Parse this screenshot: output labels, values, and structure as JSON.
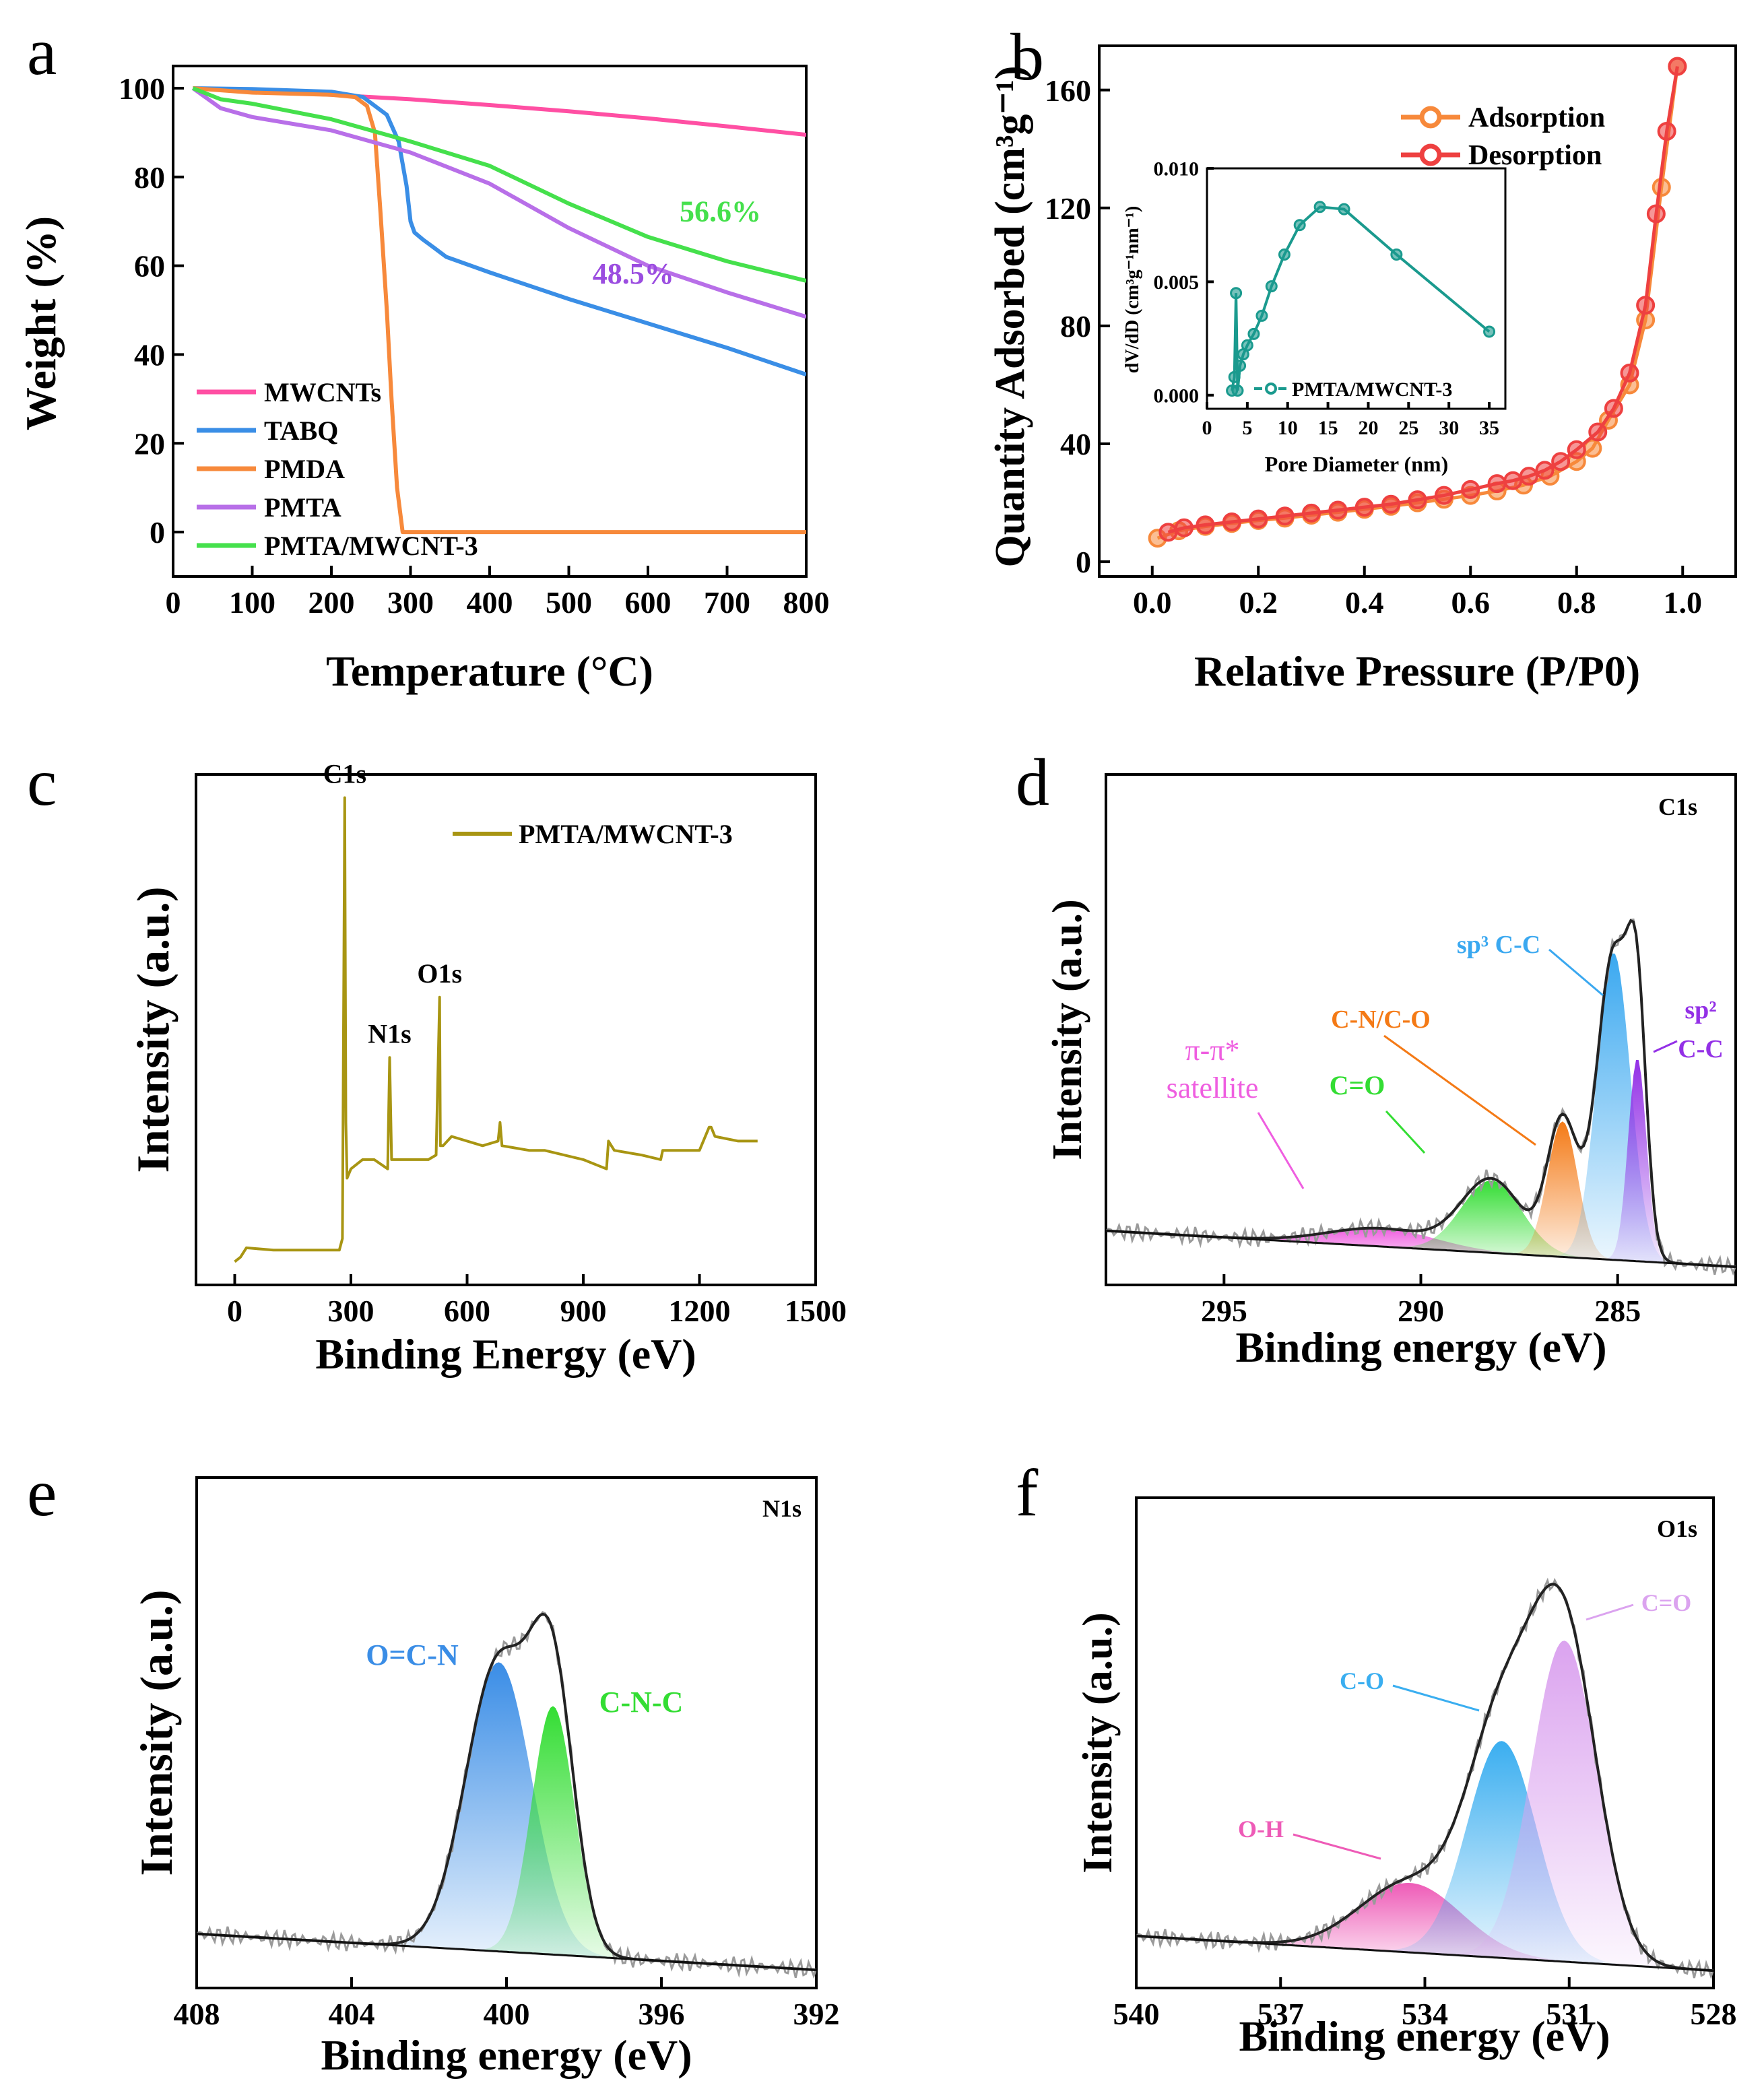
{
  "chart_data": [
    {
      "id": "a",
      "type": "line",
      "panel_label": "a",
      "xlabel": "Temperature (°C)",
      "ylabel": "Weight (%)",
      "xlim": [
        0,
        800
      ],
      "ylim": [
        -10,
        105
      ],
      "xticks": [
        0,
        100,
        200,
        300,
        400,
        500,
        600,
        700,
        800
      ],
      "yticks": [
        0,
        20,
        40,
        60,
        80,
        100
      ],
      "series": [
        {
          "name": "MWCNTs",
          "color": "#ff4fa3",
          "x": [
            25,
            100,
            200,
            300,
            400,
            500,
            600,
            700,
            800
          ],
          "y": [
            100,
            99.3,
            98.5,
            97.5,
            96.2,
            94.8,
            93.2,
            91.4,
            89.5
          ]
        },
        {
          "name": "TABQ",
          "color": "#3a8ee6",
          "x": [
            25,
            100,
            200,
            240,
            270,
            285,
            295,
            300,
            305,
            315,
            330,
            345,
            400,
            500,
            600,
            700,
            800
          ],
          "y": [
            100,
            99.8,
            99.2,
            98,
            94,
            88,
            78,
            70,
            67.5,
            66,
            64,
            62,
            58.5,
            52.5,
            47,
            41.5,
            35.5
          ]
        },
        {
          "name": "PMDA",
          "color": "#f7893b",
          "x": [
            25,
            100,
            200,
            230,
            245,
            255,
            262,
            270,
            276,
            283,
            290,
            800
          ],
          "y": [
            100,
            99,
            98.5,
            98,
            96,
            90,
            72,
            50,
            30,
            10,
            0,
            0
          ]
        },
        {
          "name": "PMTA",
          "color": "#b86fe8",
          "x": [
            25,
            60,
            100,
            200,
            300,
            400,
            500,
            600,
            700,
            800
          ],
          "y": [
            100,
            95.5,
            93.5,
            90.5,
            85.5,
            78.5,
            68.5,
            60,
            54,
            48.5
          ]
        },
        {
          "name": "PMTA/MWCNT-3",
          "color": "#45e04c",
          "x": [
            25,
            60,
            100,
            200,
            300,
            400,
            500,
            600,
            700,
            800
          ],
          "y": [
            100,
            97.5,
            96.5,
            93,
            88,
            82.5,
            74,
            66.5,
            61,
            56.6
          ]
        }
      ],
      "annotations": [
        {
          "text": "56.6%",
          "x": 640,
          "y": 70,
          "color": "#45e04c"
        },
        {
          "text": "48.5%",
          "x": 530,
          "y": 56,
          "color": "#9b4de0"
        }
      ],
      "legend": "bottom-left"
    },
    {
      "id": "b",
      "type": "line",
      "panel_label": "b",
      "xlabel": "Relative Pressure (P/P0)",
      "ylabel": "Quantity Adsorbed (cm³g⁻¹)",
      "xlim": [
        -0.1,
        1.1
      ],
      "ylim": [
        -5,
        175
      ],
      "xticks": [
        0.0,
        0.2,
        0.4,
        0.6,
        0.8,
        1.0
      ],
      "yticks": [
        0,
        40,
        80,
        120,
        160
      ],
      "series": [
        {
          "name": "Adsorption",
          "color": "#f7893b",
          "x": [
            0.01,
            0.05,
            0.1,
            0.15,
            0.2,
            0.25,
            0.3,
            0.35,
            0.4,
            0.45,
            0.5,
            0.55,
            0.6,
            0.65,
            0.7,
            0.75,
            0.8,
            0.83,
            0.86,
            0.9,
            0.93,
            0.96,
            0.99
          ],
          "y": [
            8,
            10.5,
            12,
            13,
            14,
            14.8,
            15.8,
            16.8,
            17.8,
            18.8,
            20,
            21.2,
            22.5,
            24,
            26,
            29,
            34,
            38.5,
            48,
            60,
            82,
            127,
            168
          ]
        },
        {
          "name": "Desorption",
          "color": "#ee4040",
          "x": [
            0.99,
            0.97,
            0.95,
            0.93,
            0.9,
            0.87,
            0.84,
            0.8,
            0.77,
            0.74,
            0.71,
            0.68,
            0.65,
            0.6,
            0.55,
            0.5,
            0.45,
            0.4,
            0.35,
            0.3,
            0.25,
            0.2,
            0.15,
            0.1,
            0.06,
            0.03
          ],
          "y": [
            168,
            146,
            118,
            87,
            64,
            52,
            44,
            38,
            34,
            31,
            29,
            27.5,
            26.5,
            24.5,
            22.5,
            21,
            19.5,
            18.5,
            17.5,
            16.5,
            15.5,
            14.5,
            13.5,
            12.5,
            11.5,
            10
          ]
        }
      ],
      "legend": "top-right",
      "inset": {
        "xlabel": "Pore Diameter (nm)",
        "ylabel": "dV/dD (cm³g⁻¹nm⁻¹)",
        "xlim": [
          0,
          37
        ],
        "ylim": [
          -0.0006,
          0.01
        ],
        "xticks": [
          0,
          5,
          10,
          15,
          20,
          25,
          30,
          35
        ],
        "yticks": [
          0.0,
          0.005,
          0.01
        ],
        "ytick_labels": [
          "0.000",
          "0.005",
          "0.010"
        ],
        "series": [
          {
            "name": "PMTA/MWCNT-3",
            "color": "#1a9a8e",
            "x": [
              3.1,
              3.4,
              3.6,
              3.8,
              4.1,
              4.5,
              5.0,
              5.8,
              6.8,
              8.0,
              9.6,
              11.5,
              14.0,
              17.0,
              23.5,
              35.0
            ],
            "y": [
              0.0002,
              0.0008,
              0.0045,
              0.0002,
              0.0013,
              0.0018,
              0.0022,
              0.0027,
              0.0035,
              0.0048,
              0.0062,
              0.0075,
              0.0083,
              0.0082,
              0.0062,
              0.0028
            ]
          }
        ]
      }
    },
    {
      "id": "c",
      "type": "line",
      "panel_label": "c",
      "xlabel": "Binding Energy (eV)",
      "ylabel": "Intensity (a.u.)",
      "xlim": [
        -100,
        1500
      ],
      "ylim": [
        -0.05,
        1.05
      ],
      "xticks": [
        0,
        300,
        600,
        900,
        1200,
        1500
      ],
      "series": [
        {
          "name": "PMTA/MWCNT-3",
          "color": "#a89512",
          "x": [
            0,
            15,
            30,
            100,
            200,
            270,
            278,
            284,
            287,
            290,
            300,
            330,
            360,
            395,
            400,
            405,
            450,
            500,
            520,
            529,
            531,
            538,
            560,
            640,
            680,
            685,
            690,
            760,
            800,
            900,
            960,
            965,
            980,
            1050,
            1100,
            1105,
            1115,
            1200,
            1225,
            1230,
            1240,
            1300,
            1350
          ],
          "y": [
            0,
            0.01,
            0.03,
            0.025,
            0.025,
            0.025,
            0.05,
            1.0,
            0.3,
            0.18,
            0.2,
            0.22,
            0.22,
            0.2,
            0.44,
            0.22,
            0.22,
            0.22,
            0.23,
            0.57,
            0.25,
            0.25,
            0.27,
            0.25,
            0.26,
            0.3,
            0.25,
            0.24,
            0.24,
            0.22,
            0.2,
            0.26,
            0.24,
            0.23,
            0.22,
            0.24,
            0.24,
            0.24,
            0.29,
            0.29,
            0.27,
            0.26,
            0.26
          ]
        }
      ],
      "peak_labels": [
        {
          "text": "C1s",
          "x": 285
        },
        {
          "text": "N1s",
          "x": 400
        },
        {
          "text": "O1s",
          "x": 531
        }
      ],
      "legend": "top-right"
    },
    {
      "id": "d",
      "type": "area",
      "panel_label": "d",
      "subtitle": "C1s",
      "xlabel": "Binding energy (eV)",
      "ylabel": "Intensity (a.u.)",
      "xlim": [
        298,
        282
      ],
      "ylim": [
        -0.08,
        1.05
      ],
      "xticks": [
        295,
        290,
        285
      ],
      "envelope_color": "#222222",
      "peaks": [
        {
          "name": "π-π* satellite",
          "center": 291.0,
          "height": 0.04,
          "fwhm": 3.2,
          "color": "#ef5ee0"
        },
        {
          "name": "C=O",
          "center": 288.2,
          "height": 0.16,
          "fwhm": 1.8,
          "color": "#33dd33"
        },
        {
          "name": "C-N/C-O",
          "center": 286.4,
          "height": 0.3,
          "fwhm": 0.9,
          "color": "#f47a16"
        },
        {
          "name": "sp3 C-C",
          "center": 285.1,
          "height": 0.68,
          "fwhm": 1.0,
          "color": "#3aa8f0"
        },
        {
          "name": "sp2 C-C",
          "center": 284.5,
          "height": 0.45,
          "fwhm": 0.55,
          "color": "#9330e6"
        }
      ],
      "peak_labels": [
        {
          "text": "sp³ C-C",
          "color": "#3aa8f0"
        },
        {
          "text": "C-N/C-O",
          "color": "#f47a16"
        },
        {
          "text": "sp²",
          "color": "#9330e6"
        },
        {
          "text": "C-C",
          "color": "#9330e6"
        },
        {
          "text": "π-π*",
          "color": "#ef5ee0"
        },
        {
          "text": "satellite",
          "color": "#ef5ee0"
        },
        {
          "text": "C=O",
          "color": "#33dd33"
        }
      ]
    },
    {
      "id": "e",
      "type": "area",
      "panel_label": "e",
      "subtitle": "N1s",
      "xlabel": "Binding energy (eV)",
      "ylabel": "Intensity (a.u.)",
      "xlim": [
        408,
        392
      ],
      "ylim": [
        -0.08,
        1.05
      ],
      "xticks": [
        408,
        404,
        400,
        396,
        392
      ],
      "envelope_color": "#222222",
      "peaks": [
        {
          "name": "O=C-N",
          "center": 400.2,
          "height": 0.64,
          "fwhm": 2.0,
          "color": "#3a8de6"
        },
        {
          "name": "C-N-C",
          "center": 398.8,
          "height": 0.55,
          "fwhm": 1.3,
          "color": "#33dd33"
        }
      ],
      "peak_labels": [
        {
          "text": "O=C-N",
          "color": "#3a8de6"
        },
        {
          "text": "C-N-C",
          "color": "#33dd33"
        }
      ]
    },
    {
      "id": "f",
      "type": "area",
      "panel_label": "f",
      "subtitle": "O1s",
      "xlabel": "Binding energy (eV)",
      "ylabel": "Intensity (a.u.)",
      "xlim": [
        540,
        528
      ],
      "ylim": [
        -0.08,
        1.05
      ],
      "xticks": [
        540,
        537,
        534,
        531,
        528
      ],
      "envelope_color": "#222222",
      "peaks": [
        {
          "name": "O-H",
          "center": 534.3,
          "height": 0.16,
          "fwhm": 2.5,
          "color": "#ee5bb7"
        },
        {
          "name": "C-O",
          "center": 532.4,
          "height": 0.5,
          "fwhm": 1.7,
          "color": "#3aaef0"
        },
        {
          "name": "C=O",
          "center": 531.1,
          "height": 0.74,
          "fwhm": 1.6,
          "color": "#dba3ef"
        }
      ],
      "peak_labels": [
        {
          "text": "O-H",
          "color": "#ee5bb7"
        },
        {
          "text": "C-O",
          "color": "#3aaef0"
        },
        {
          "text": "C=O",
          "color": "#dba3ef"
        }
      ]
    }
  ]
}
